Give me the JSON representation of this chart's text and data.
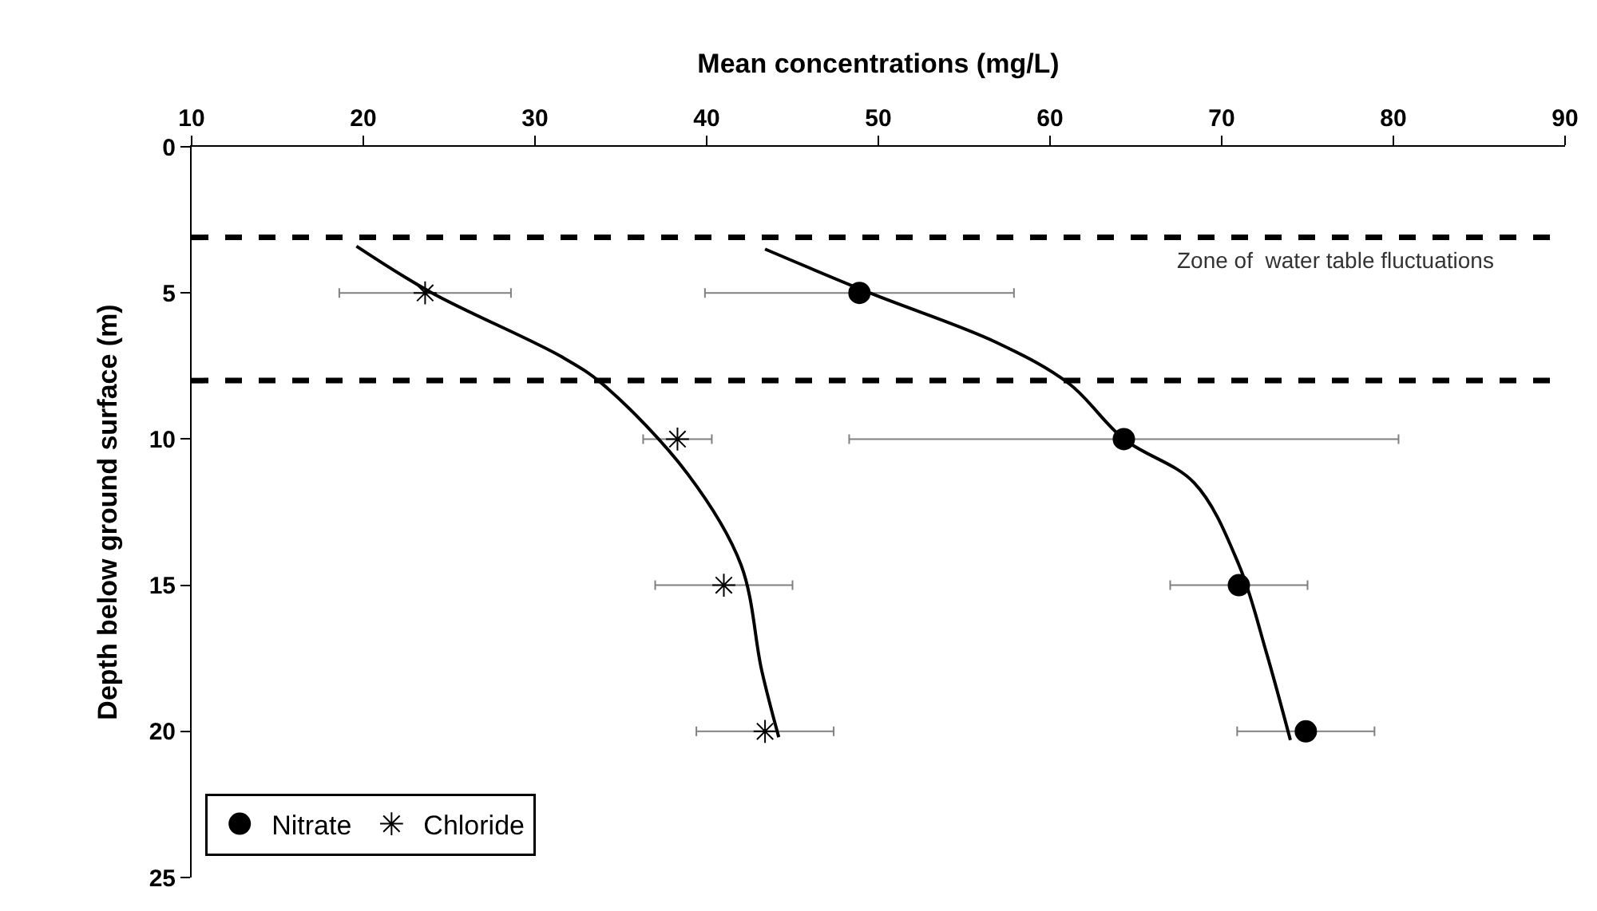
{
  "chart_data": {
    "type": "scatter",
    "xlabel": "Mean concentrations (mg/L)",
    "ylabel": "Depth below ground surface (m)",
    "xlim": [
      10,
      90
    ],
    "xticks": [
      10,
      20,
      30,
      40,
      50,
      60,
      70,
      80,
      90
    ],
    "ylim": [
      25,
      0
    ],
    "yticks": [
      0,
      5,
      10,
      15,
      20,
      25
    ],
    "grid": false,
    "legend": "bottom left",
    "tick_labels": "xy",
    "series": [
      {
        "name": "Nitrate",
        "marker": "circle",
        "color": "#000000",
        "x": [
          48.9,
          64.3,
          71.0,
          74.9
        ],
        "values": [
          5,
          10,
          15,
          20
        ],
        "xerrors": [
          9,
          16,
          4,
          4
        ]
      },
      {
        "name": "Chloride",
        "marker": "cross",
        "color": "#000000",
        "x": [
          23.6,
          38.3,
          41.0,
          43.4
        ],
        "values": [
          5,
          10,
          15,
          20
        ],
        "xerrors": [
          5,
          2,
          4,
          4
        ]
      },
      {
        "type": "line",
        "marker": "none",
        "line_style": "solid",
        "color": "#000000",
        "x": [
          43.4,
          49.5,
          56.9,
          61.1,
          64.3,
          68.4,
          71.0,
          72.6,
          74.0
        ],
        "values": [
          3.5,
          5.0,
          6.7,
          8.1,
          10.0,
          11.5,
          14.3,
          17.3,
          20.3
        ]
      },
      {
        "type": "line",
        "marker": "none",
        "line_style": "solid",
        "color": "#000000",
        "x": [
          19.6,
          24.0,
          31.6,
          34.0,
          38.9,
          42.0,
          43.2,
          44.2
        ],
        "values": [
          3.4,
          5.0,
          7.2,
          8.15,
          11.2,
          14.3,
          17.9,
          20.2
        ]
      }
    ],
    "ref_lines": [
      {
        "axis": "y",
        "value": 3.1,
        "color": "#000000",
        "line_style": "dashed"
      },
      {
        "axis": "y",
        "value": 8,
        "color": "#000000",
        "line_style": "dashed"
      }
    ],
    "annotations": [
      "Zone of  water table fluctuations"
    ]
  }
}
